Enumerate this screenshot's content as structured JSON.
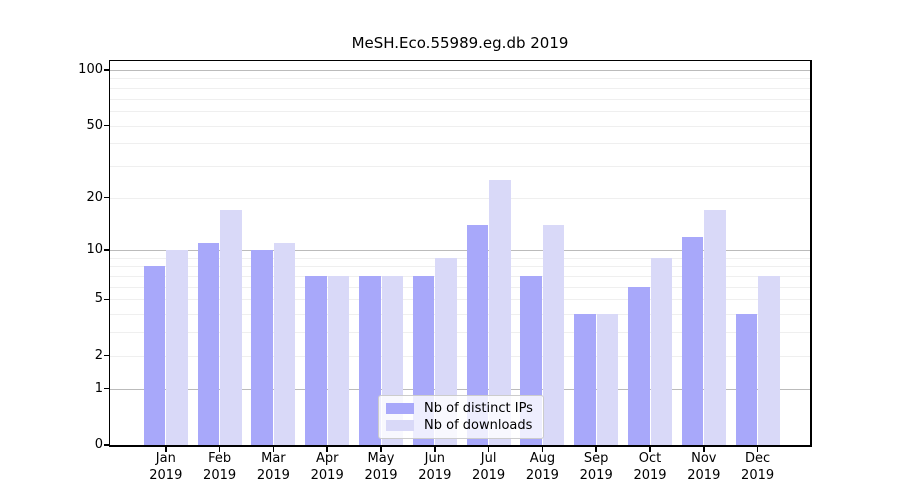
{
  "chart_data": {
    "type": "bar",
    "title": "MeSH.Eco.55989.eg.db 2019",
    "categories": [
      "Jan 2019",
      "Feb 2019",
      "Mar 2019",
      "Apr 2019",
      "May 2019",
      "Jun 2019",
      "Jul 2019",
      "Aug 2019",
      "Sep 2019",
      "Oct 2019",
      "Nov 2019",
      "Dec 2019"
    ],
    "series": [
      {
        "name": "Nb of distinct IPs",
        "color": "#a8a8fa",
        "values": [
          8,
          11,
          10,
          7,
          7,
          7,
          14,
          7,
          4,
          6,
          12,
          4
        ]
      },
      {
        "name": "Nb of downloads",
        "color": "#d9d9f8",
        "values": [
          10,
          17,
          11,
          7,
          7,
          9,
          25,
          14,
          4,
          9,
          17,
          7
        ]
      }
    ],
    "yscale": "log1p",
    "ylim": [
      0,
      100
    ],
    "y_ticks": [
      100,
      50,
      20,
      10,
      5,
      2,
      1,
      0
    ],
    "grid": "on",
    "legend_position": "bottom-center",
    "grid_major_values": [
      1,
      10,
      100
    ],
    "grid_minor_values": [
      2,
      3,
      4,
      5,
      6,
      7,
      8,
      9,
      20,
      30,
      40,
      50,
      60,
      70,
      80,
      90
    ]
  }
}
